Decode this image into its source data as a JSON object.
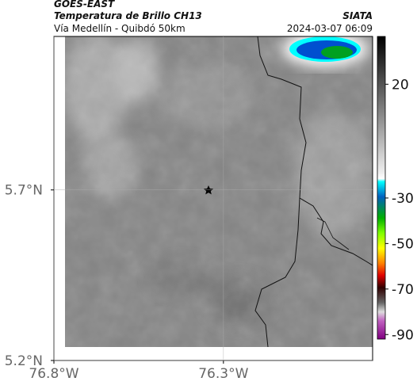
{
  "header": {
    "title": "GOES-EAST",
    "subtitle": "Temperatura de Brillo CH13",
    "source": "SIATA",
    "route": "Vía Medellín - Quibdó 50km",
    "datetime": "2024-03-07 06:09"
  },
  "map": {
    "lonlim": [
      -76.8,
      -75.86
    ],
    "latlim": [
      5.2,
      6.15
    ],
    "lonticks": [
      {
        "value": -76.8,
        "label": "76.8°W"
      },
      {
        "value": -76.3,
        "label": "76.3°W"
      }
    ],
    "latticks": [
      {
        "value": 5.7,
        "label": "5.7°N"
      },
      {
        "value": 5.2,
        "label": "5.2°N"
      }
    ]
  },
  "colorbar": {
    "lim": [
      41,
      -92
    ],
    "ticks": [
      20,
      -30,
      -50,
      -70,
      -90
    ]
  }
}
